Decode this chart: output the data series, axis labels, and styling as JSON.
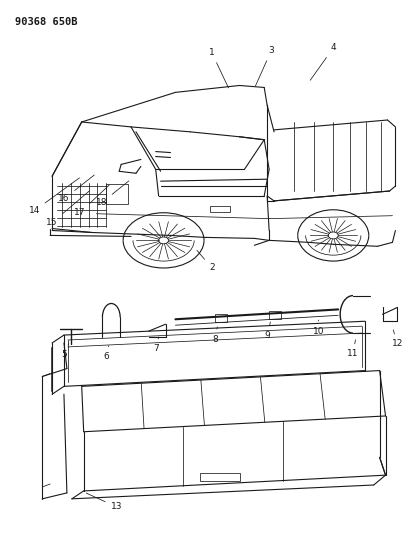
{
  "title": "90368 650B",
  "bg_color": "#ffffff",
  "text_color": "#1a1a1a",
  "fig_width": 4.12,
  "fig_height": 5.33,
  "dpi": 100
}
